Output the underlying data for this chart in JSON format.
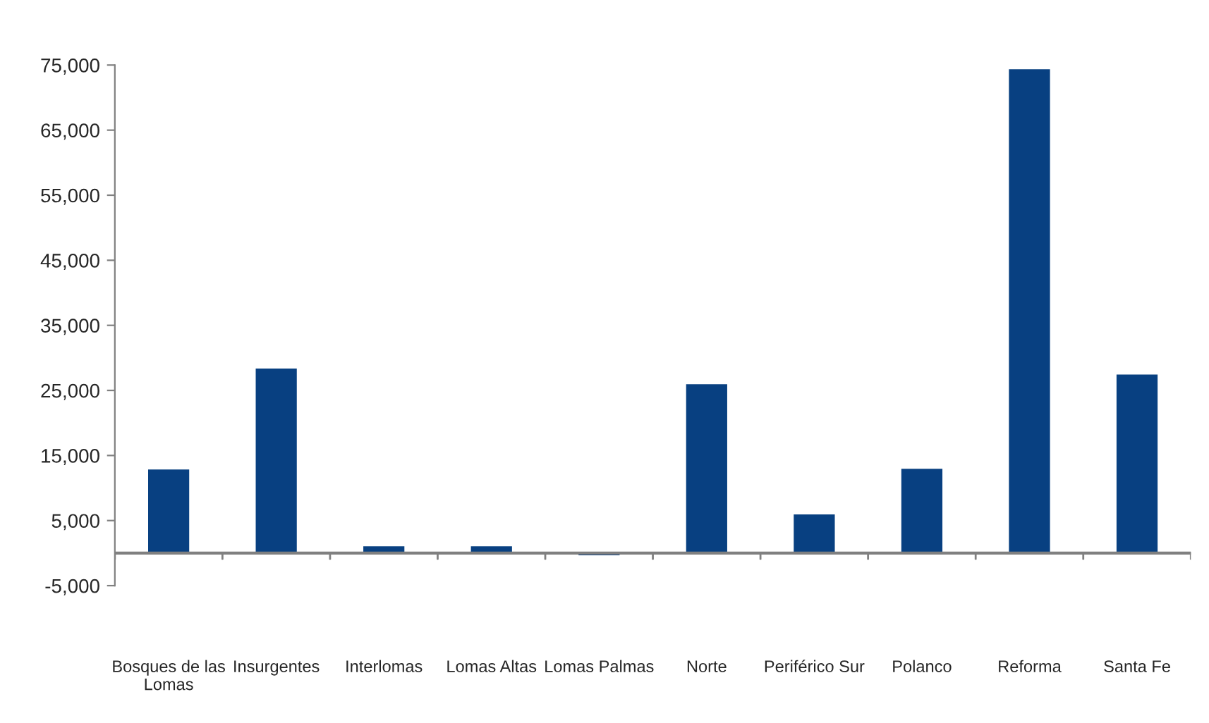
{
  "chart_data": {
    "type": "bar",
    "categories": [
      "Bosques de las Lomas",
      "Insurgentes",
      "Interlomas",
      "Lomas Altas",
      "Lomas Palmas",
      "Norte",
      "Periférico Sur",
      "Polanco",
      "Reforma",
      "Santa Fe"
    ],
    "values": [
      13000,
      28500,
      1200,
      1200,
      -500,
      26100,
      6100,
      13100,
      74500,
      27600
    ],
    "color": "#084081",
    "ylim": [
      -5000,
      75000
    ],
    "yticks": [
      {
        "value": -5000,
        "label": "-5,000"
      },
      {
        "value": 5000,
        "label": "5,000"
      },
      {
        "value": 15000,
        "label": "15,000"
      },
      {
        "value": 25000,
        "label": "25,000"
      },
      {
        "value": 35000,
        "label": "35,000"
      },
      {
        "value": 45000,
        "label": "45,000"
      },
      {
        "value": 55000,
        "label": "55,000"
      },
      {
        "value": 65000,
        "label": "65,000"
      },
      {
        "value": 75000,
        "label": "75,000"
      }
    ],
    "grid": false,
    "legend": false
  }
}
